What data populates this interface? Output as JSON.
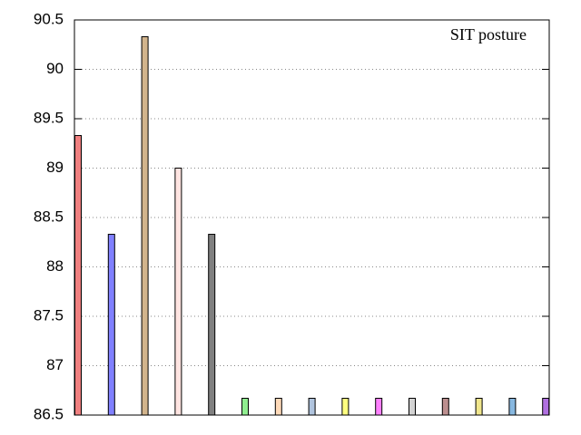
{
  "chart_data": {
    "type": "bar",
    "title": "SIT posture",
    "categories": [
      null,
      null,
      null,
      null,
      null,
      null,
      null,
      null,
      null,
      null,
      null,
      null,
      null,
      null,
      null
    ],
    "values": [
      89.33,
      88.33,
      90.33,
      89.0,
      88.33,
      86.67,
      86.67,
      86.67,
      86.67,
      86.67,
      86.67,
      86.67,
      86.67,
      86.67,
      86.67
    ],
    "colors": [
      "#f08080",
      "#8080ff",
      "#d2b48c",
      "#ffe4e1",
      "#808080",
      "#90ee90",
      "#ffdab9",
      "#b0c4de",
      "#ffff80",
      "#ff80ff",
      "#d3d3d3",
      "#bc8f8f",
      "#f0e68c",
      "#87b8e0",
      "#b070e0"
    ],
    "ylim": [
      86.5,
      90.5
    ],
    "yticks": [
      86.5,
      87,
      87.5,
      88,
      88.5,
      89,
      89.5,
      90,
      90.5
    ],
    "grid": true
  }
}
